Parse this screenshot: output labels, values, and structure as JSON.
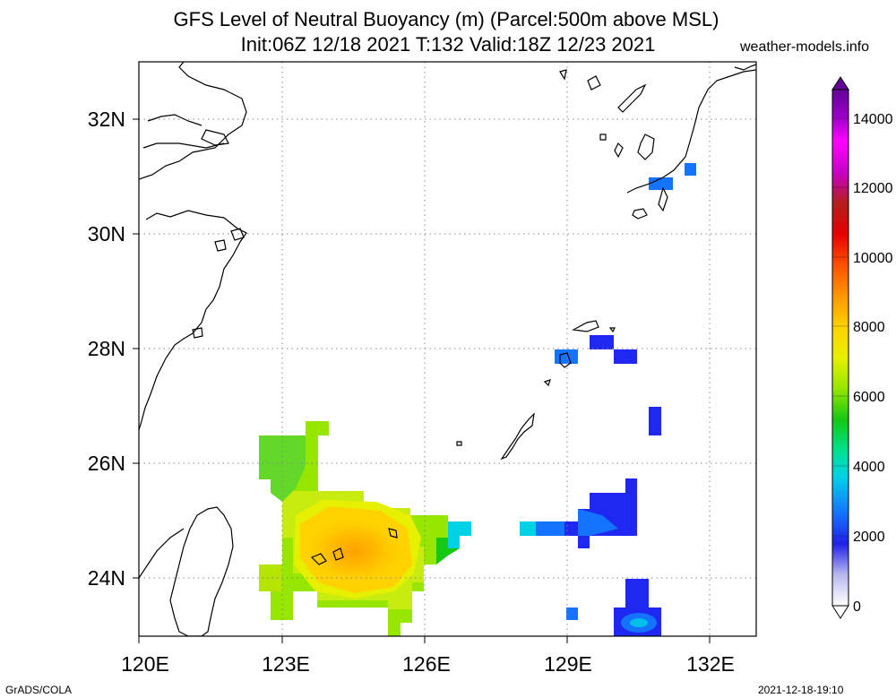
{
  "title_line1": "GFS Level of Neutral Buoyancy (m) (Parcel:500m above MSL)",
  "title_line2": "Init:06Z 12/18 2021 T:132 Valid:18Z 12/23 2021",
  "site": "weather-models.info",
  "footer_left": "GrADS/COLA",
  "footer_right": "2021-12-18-19:10",
  "map": {
    "lon_labels": [
      "120E",
      "123E",
      "126E",
      "129E",
      "132E"
    ],
    "lat_labels": [
      "32N",
      "30N",
      "28N",
      "26N",
      "24N"
    ],
    "lon_range": [
      120,
      133
    ],
    "lat_range": [
      23,
      33
    ],
    "gridlines": "dotted"
  },
  "colorbar": {
    "labels": [
      "14000",
      "12000",
      "10000",
      "8000",
      "6000",
      "4000",
      "2000",
      "0"
    ],
    "range": [
      0,
      15000
    ],
    "colors": [
      "#ffffff",
      "#b8b8f0",
      "#2020e8",
      "#1474ff",
      "#00d2e6",
      "#00e090",
      "#14c814",
      "#96e600",
      "#e6f000",
      "#ffd200",
      "#ff9600",
      "#ff5000",
      "#e60000",
      "#b41e1e",
      "#c800c8",
      "#ff00ff",
      "#9600c8",
      "#640096"
    ]
  }
}
